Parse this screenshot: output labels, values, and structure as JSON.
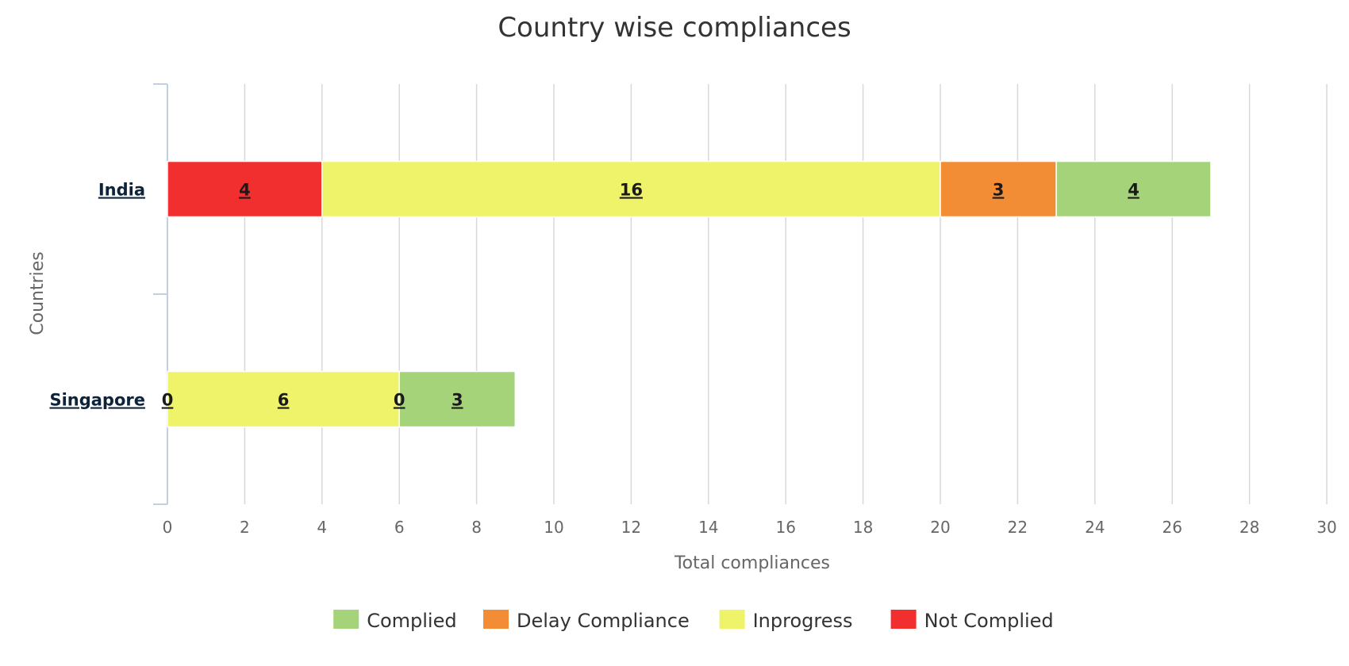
{
  "chart_data": {
    "type": "bar",
    "orientation": "horizontal",
    "stacked": true,
    "title": "Country wise compliances",
    "xlabel": "Total compliances",
    "ylabel": "Countries",
    "xlim": [
      0,
      30
    ],
    "xticks": [
      "0",
      "2",
      "4",
      "6",
      "8",
      "10",
      "12",
      "14",
      "16",
      "18",
      "20",
      "22",
      "24",
      "26",
      "28",
      "30"
    ],
    "categories": [
      "India",
      "Singapore"
    ],
    "grid": true,
    "legend_position": "bottom-center",
    "stack_order": [
      "Not Complied",
      "Inprogress",
      "Delay Compliance",
      "Complied"
    ],
    "series": [
      {
        "name": "Complied",
        "color": "#a4d37a",
        "values": [
          4,
          3
        ]
      },
      {
        "name": "Delay Compliance",
        "color": "#f28c35",
        "values": [
          3,
          0
        ]
      },
      {
        "name": "Inprogress",
        "color": "#eef36a",
        "values": [
          16,
          6
        ]
      },
      {
        "name": "Not Complied",
        "color": "#f22f2f",
        "values": [
          4,
          0
        ]
      }
    ]
  }
}
